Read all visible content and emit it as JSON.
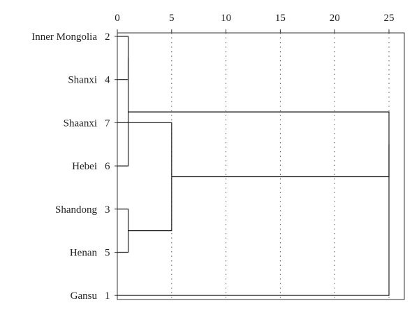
{
  "chart_data": {
    "type": "dendrogram",
    "title": "",
    "xlabel": "",
    "ylabel": "",
    "xlim": [
      0,
      26
    ],
    "x_ticks": [
      "0",
      "5",
      "10",
      "15",
      "20",
      "25"
    ],
    "x_tick_values": [
      0,
      5,
      10,
      15,
      20,
      25
    ],
    "grid": "vertical dotted",
    "leaves": [
      {
        "name": "Inner Mongolia",
        "id": "2"
      },
      {
        "name": "Shanxi",
        "id": "4"
      },
      {
        "name": "Shaanxi",
        "id": "7"
      },
      {
        "name": "Hebei",
        "id": "6"
      },
      {
        "name": "Shandong",
        "id": "3"
      },
      {
        "name": "Henan",
        "id": "5"
      },
      {
        "name": "Gansu",
        "id": "1"
      }
    ],
    "merges": [
      {
        "a": "L0",
        "b": "L1",
        "distance": 1.0
      },
      {
        "a": "L3",
        "b": "M0",
        "distance": 1.0
      },
      {
        "a": "L4",
        "b": "L5",
        "distance": 1.0
      },
      {
        "a": "L2",
        "b": "M2",
        "distance": 5.0
      },
      {
        "a": "M1",
        "b": "M3",
        "distance": 25.0
      },
      {
        "a": "L6",
        "b": "M4",
        "distance": 25.0
      }
    ]
  }
}
